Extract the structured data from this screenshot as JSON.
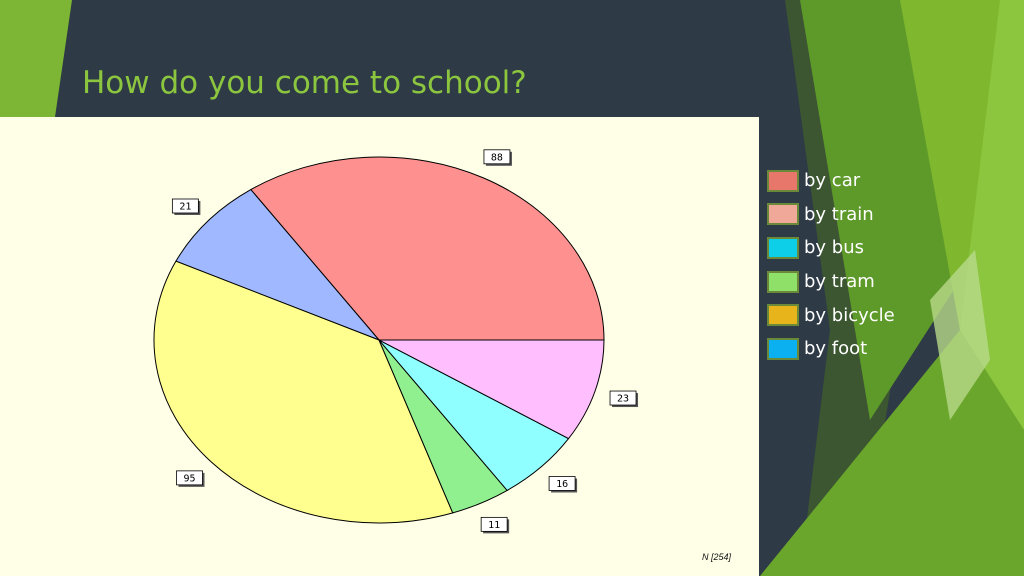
{
  "slide": {
    "title": "How do you come to school?"
  },
  "chart_data": {
    "type": "pie",
    "categories": [
      "by car",
      "by train",
      "by bus",
      "by tram",
      "by bicycle",
      "by foot"
    ],
    "values": [
      88,
      21,
      95,
      11,
      16,
      23
    ],
    "slice_colors": [
      "#ff9090",
      "#a0b8ff",
      "#ffff90",
      "#90f090",
      "#90ffff",
      "#ffbfff"
    ],
    "legend": {
      "position": "right",
      "items": [
        {
          "label": "by car",
          "color": "#e8776b"
        },
        {
          "label": "by train",
          "color": "#f0a898"
        },
        {
          "label": "by bus",
          "color": "#0dcfe8"
        },
        {
          "label": "by tram",
          "color": "#8ee068"
        },
        {
          "label": "by bicycle",
          "color": "#e8b41c"
        },
        {
          "label": "by foot",
          "color": "#0bb0f0"
        }
      ]
    },
    "note": "N [254]"
  },
  "colors": {
    "background": "#2e3a45",
    "title": "#8cc63f",
    "panel": "#ffffe8",
    "accent_green": "#8cc63f"
  }
}
